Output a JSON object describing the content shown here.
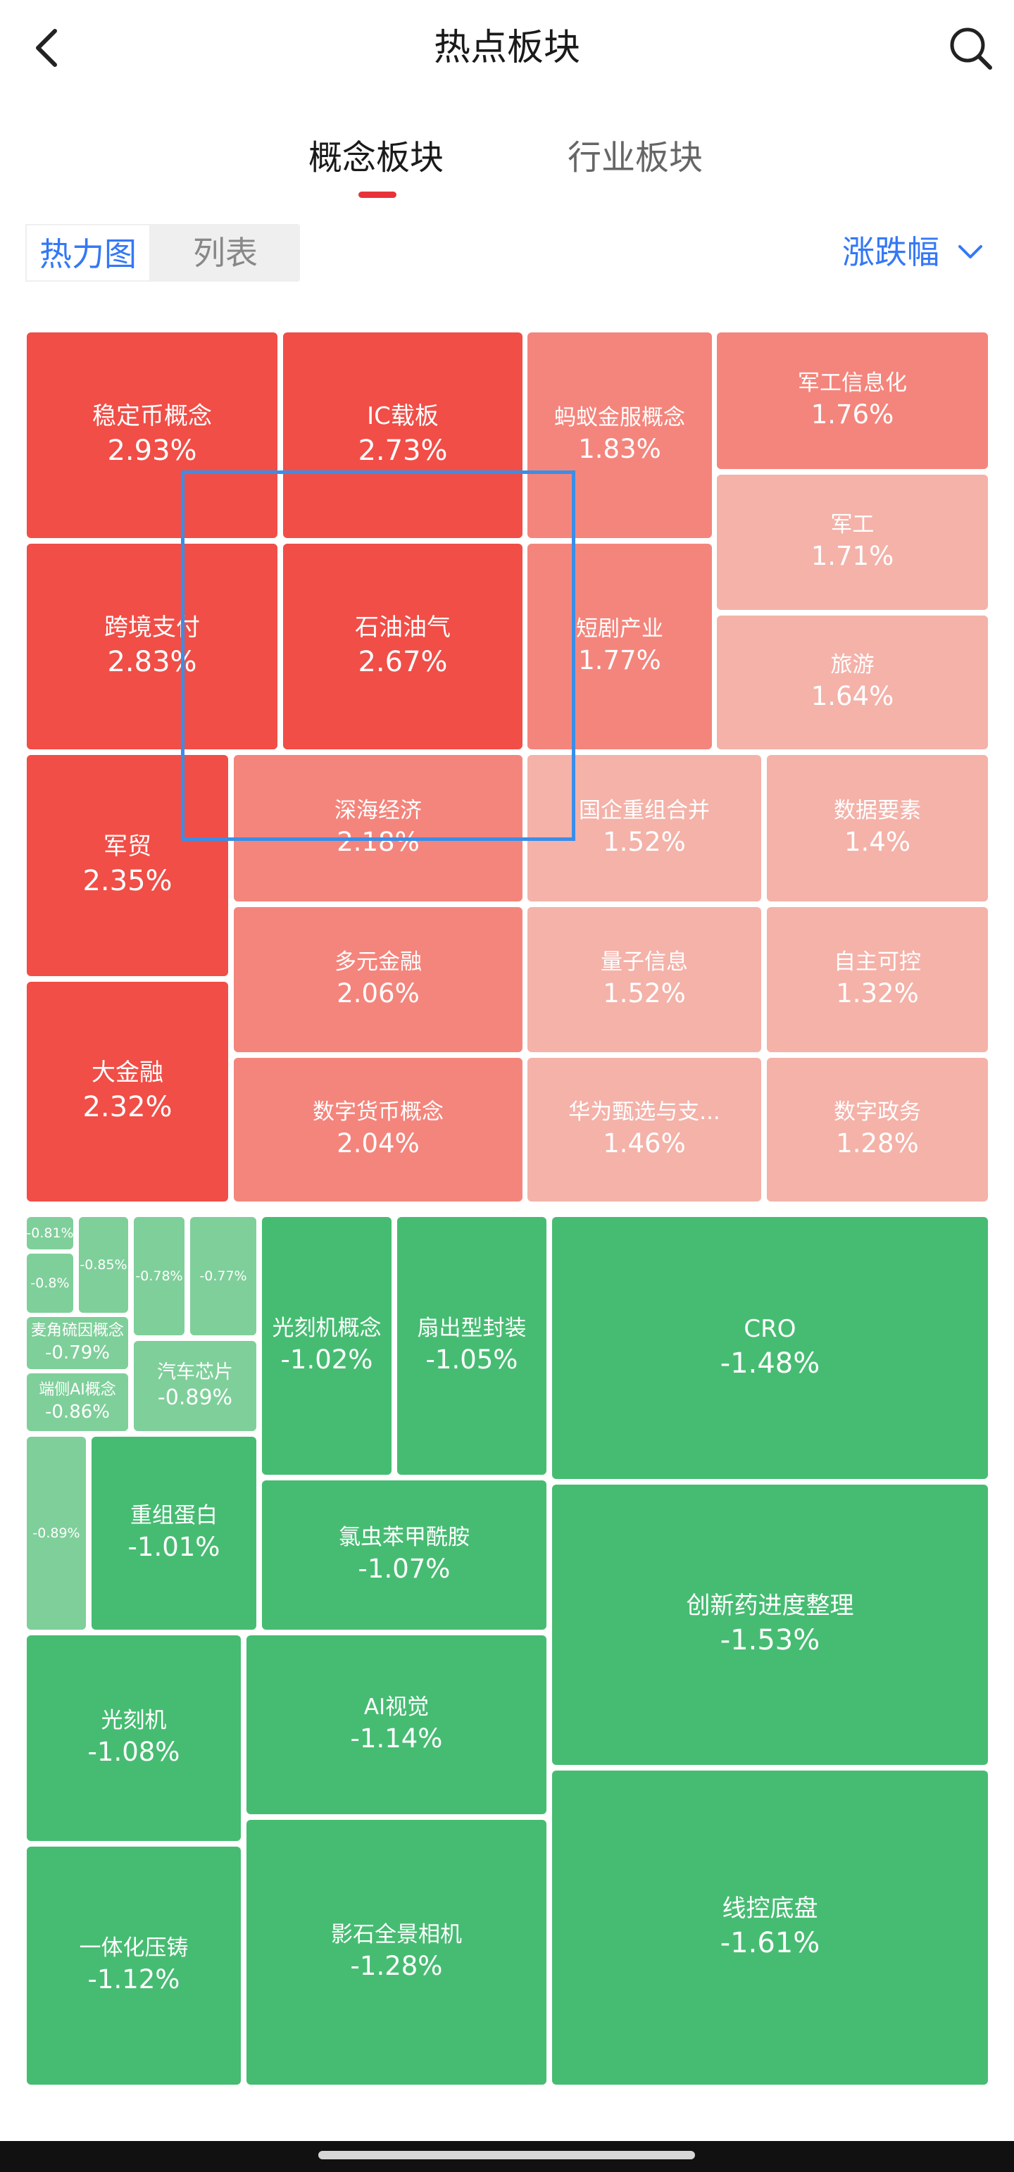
{
  "header": {
    "title": "热点板块",
    "back_icon": "chevron-left-icon",
    "search_icon": "search-icon"
  },
  "tabs": [
    {
      "label": "概念板块",
      "active": true
    },
    {
      "label": "行业板块",
      "active": false
    }
  ],
  "view_toggle": {
    "heatmap_label": "热力图",
    "list_label": "列表",
    "selected": "热力图"
  },
  "sort": {
    "label": "涨跌幅",
    "icon": "chevron-down-icon"
  },
  "colors": {
    "accent_blue": "#3478f6",
    "tab_indicator": "#e8333a",
    "up_strong": "#f04e47",
    "up_mid": "#f4857c",
    "up_light": "#f4b2a9",
    "down_strong": "#46bc72",
    "down_light": "#7fcf9a",
    "selection_box": "#3a8ee8"
  },
  "sectors": [
    {
      "name": "稳定币概念",
      "change": "2.93%",
      "value": 2.93
    },
    {
      "name": "IC载板",
      "change": "2.73%",
      "value": 2.73
    },
    {
      "name": "蚂蚁金服概念",
      "change": "1.83%",
      "value": 1.83
    },
    {
      "name": "军工信息化",
      "change": "1.76%",
      "value": 1.76
    },
    {
      "name": "军工",
      "change": "1.71%",
      "value": 1.71
    },
    {
      "name": "旅游",
      "change": "1.64%",
      "value": 1.64
    },
    {
      "name": "跨境支付",
      "change": "2.83%",
      "value": 2.83
    },
    {
      "name": "石油油气",
      "change": "2.67%",
      "value": 2.67
    },
    {
      "name": "短剧产业",
      "change": "1.77%",
      "value": 1.77
    },
    {
      "name": "军贸",
      "change": "2.35%",
      "value": 2.35
    },
    {
      "name": "深海经济",
      "change": "2.18%",
      "value": 2.18
    },
    {
      "name": "国企重组合并",
      "change": "1.52%",
      "value": 1.52
    },
    {
      "name": "数据要素",
      "change": "1.4%",
      "value": 1.4
    },
    {
      "name": "多元金融",
      "change": "2.06%",
      "value": 2.06
    },
    {
      "name": "量子信息",
      "change": "1.52%",
      "value": 1.52
    },
    {
      "name": "自主可控",
      "change": "1.32%",
      "value": 1.32
    },
    {
      "name": "大金融",
      "change": "2.32%",
      "value": 2.32
    },
    {
      "name": "数字货币概念",
      "change": "2.04%",
      "value": 2.04
    },
    {
      "name": "华为甄选与支...",
      "change": "1.46%",
      "value": 1.46
    },
    {
      "name": "数字政务",
      "change": "1.28%",
      "value": 1.28
    },
    {
      "name": "",
      "change": "-0.81%",
      "value": -0.81
    },
    {
      "name": "",
      "change": "-0.8%",
      "value": -0.8
    },
    {
      "name": "",
      "change": "-0.85%",
      "value": -0.85
    },
    {
      "name": "",
      "change": "-0.78%",
      "value": -0.78
    },
    {
      "name": "",
      "change": "-0.77%",
      "value": -0.77
    },
    {
      "name": "麦角硫因概念",
      "change": "-0.79%",
      "value": -0.79
    },
    {
      "name": "汽车芯片",
      "change": "-0.89%",
      "value": -0.89
    },
    {
      "name": "端侧AI概念",
      "change": "-0.86%",
      "value": -0.86
    },
    {
      "name": "",
      "change": "-0.89%",
      "value": -0.89
    },
    {
      "name": "重组蛋白",
      "change": "-1.01%",
      "value": -1.01
    },
    {
      "name": "光刻机概念",
      "change": "-1.02%",
      "value": -1.02
    },
    {
      "name": "扇出型封装",
      "change": "-1.05%",
      "value": -1.05
    },
    {
      "name": "CRO",
      "change": "-1.48%",
      "value": -1.48
    },
    {
      "name": "氯虫苯甲酰胺",
      "change": "-1.07%",
      "value": -1.07
    },
    {
      "name": "创新药进度整理",
      "change": "-1.53%",
      "value": -1.53
    },
    {
      "name": "光刻机",
      "change": "-1.08%",
      "value": -1.08
    },
    {
      "name": "AI视觉",
      "change": "-1.14%",
      "value": -1.14
    },
    {
      "name": "一体化压铸",
      "change": "-1.12%",
      "value": -1.12
    },
    {
      "name": "影石全景相机",
      "change": "-1.28%",
      "value": -1.28
    },
    {
      "name": "线控底盘",
      "change": "-1.61%",
      "value": -1.61
    }
  ]
}
